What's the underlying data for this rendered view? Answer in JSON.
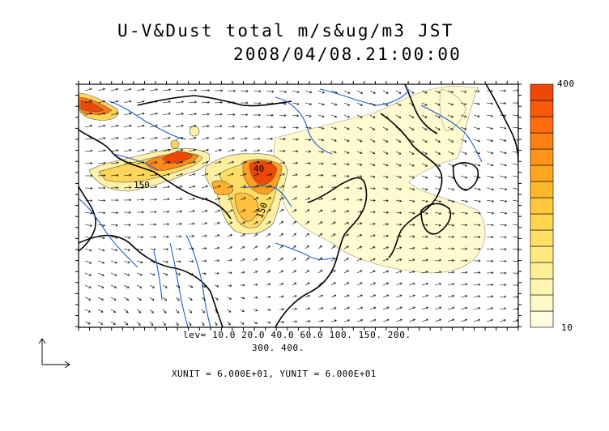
{
  "title": {
    "line1": "U-V&Dust total m/s&ug/m3 JST",
    "line2": "2008/04/08.21:00:00"
  },
  "contour_levels": {
    "line1": "lev= 10.0 20.0 40.0 60.0 100. 150. 200.",
    "line2": "300. 400.",
    "values": [
      10,
      20,
      40,
      60,
      100,
      150,
      200,
      300,
      400
    ]
  },
  "units_text": "XUNIT = 6.000E+01, YUNIT = 6.000E+01",
  "colorbar": {
    "max_label": "400",
    "min_label": "10",
    "colors": [
      "#fffce0",
      "#fff8c8",
      "#fff4b0",
      "#ffef98",
      "#ffe980",
      "#ffe066",
      "#ffd54e",
      "#ffc83a",
      "#ffb82c",
      "#ffa620",
      "#ff9418",
      "#ff8012",
      "#ff6c0e",
      "#f85a0a",
      "#ee4806"
    ]
  },
  "map_labels": {
    "contour_label_1": "150",
    "contour_label_2": "40",
    "contour_label_3": "150"
  },
  "reference_vector_icon": "vector-axis-icon",
  "colors": {
    "rivers": "#1a5ccc",
    "coast": "#000000",
    "dust_low": "#fff8c8",
    "dust_high": "#ee4806"
  }
}
